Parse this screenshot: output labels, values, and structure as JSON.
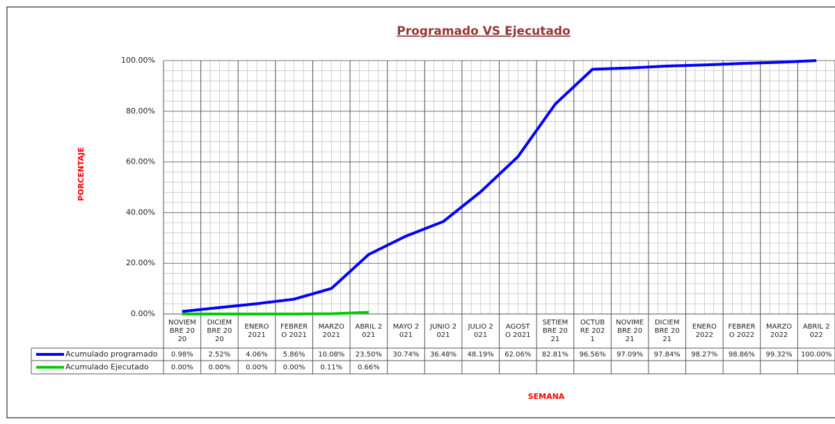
{
  "chart_data": {
    "type": "line",
    "title": "Programado VS Ejecutado",
    "y_label": "PORCENTAJE",
    "x_label": "SEMANA",
    "categories": [
      "NOVIEMBRE 2020",
      "DICIEMBRE 2020",
      "ENERO 2021",
      "FEBRERO 2021",
      "MARZO 2021",
      "ABRIL 2021",
      "MAYO 2021",
      "JUNIO 2021",
      "JULIO 2021",
      "AGOSTO 2021",
      "SETIEMBRE 2021",
      "OCTUBRE 2021",
      "NOVIMEBRE 2021",
      "DICIEMBRE 2021",
      "ENERO 2022",
      "FEBRERO 2022",
      "MARZO 2022",
      "ABRIL 2022"
    ],
    "series": [
      {
        "name": "Acumulado programado",
        "color": "#0000ff",
        "values": [
          0.98,
          2.52,
          4.06,
          5.86,
          10.08,
          23.5,
          30.74,
          36.48,
          48.19,
          62.06,
          82.81,
          96.56,
          97.09,
          97.84,
          98.27,
          98.86,
          99.32,
          100
        ],
        "value_labels": [
          "0.98%",
          "2.52%",
          "4.06%",
          "5.86%",
          "10.08%",
          "23.50%",
          "30.74%",
          "36.48%",
          "48.19%",
          "62.06%",
          "82.81%",
          "96.56%",
          "97.09%",
          "97.84%",
          "98.27%",
          "98.86%",
          "99.32%",
          "100.00%"
        ]
      },
      {
        "name": "Acumulado Ejecutado",
        "color": "#00cc00",
        "values": [
          0,
          0,
          0,
          0,
          0.11,
          0.66,
          null,
          null,
          null,
          null,
          null,
          null,
          null,
          null,
          null,
          null,
          null,
          null
        ],
        "value_labels": [
          "0.00%",
          "0.00%",
          "0.00%",
          "0.00%",
          "0.11%",
          "0.66%",
          null,
          null,
          null,
          null,
          null,
          null,
          null,
          null,
          null,
          null,
          null,
          null
        ]
      }
    ],
    "ylim": [
      0,
      100
    ],
    "yticks": [
      {
        "value": 0,
        "label": "0.00%"
      },
      {
        "value": 20,
        "label": "20.00%"
      },
      {
        "value": 40,
        "label": "40.00%"
      },
      {
        "value": 60,
        "label": "60.00%"
      },
      {
        "value": 80,
        "label": "80.00%"
      },
      {
        "value": 100,
        "label": "100.00%"
      }
    ],
    "grid": true
  }
}
